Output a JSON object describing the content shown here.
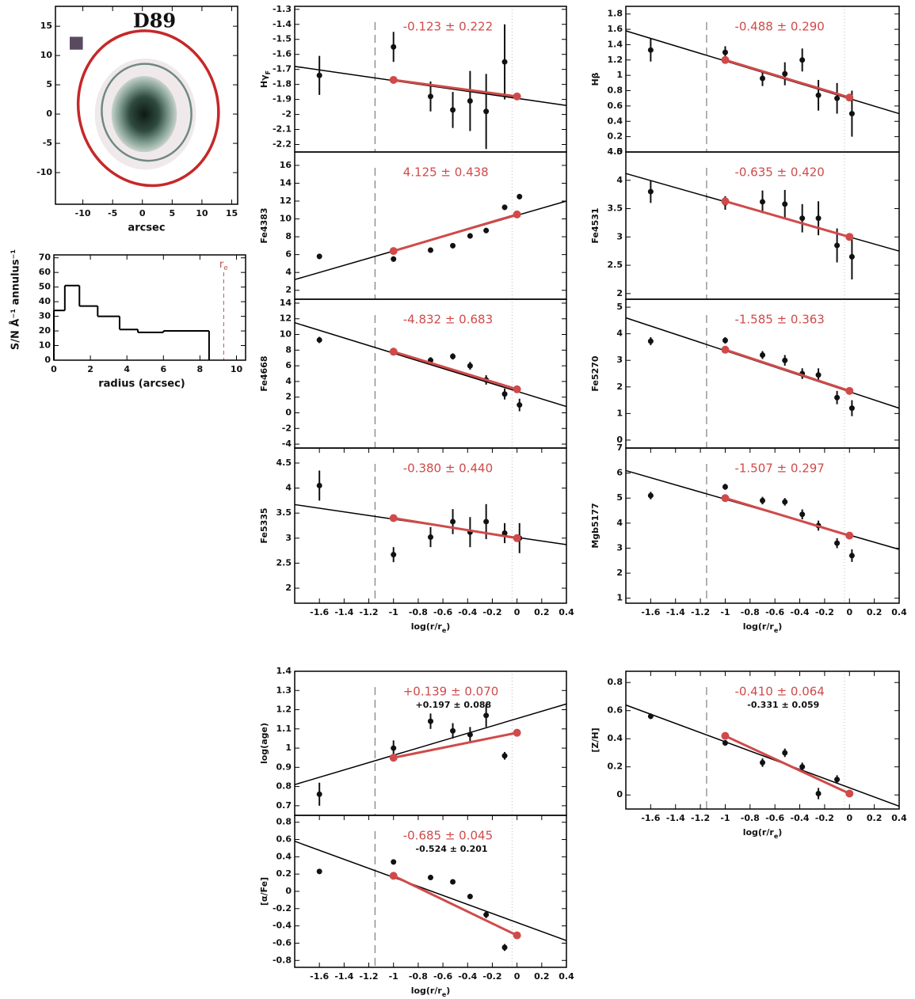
{
  "chart_data": [
    {
      "type": "image",
      "title": "D89",
      "xlabel": "arcsec",
      "xlim": [
        -14.6,
        16
      ],
      "ylim": [
        -15.4,
        18.4
      ],
      "xticks": [
        -10,
        -5,
        0,
        5,
        10,
        15
      ],
      "yticks": [
        -10,
        -5,
        0,
        5,
        10,
        15
      ]
    },
    {
      "type": "histogram",
      "xlabel": "radius (arcsec)",
      "ylabel": "S/N Å⁻¹ annulus⁻¹",
      "bins": [
        0,
        0.6,
        1.4,
        2.4,
        3.6,
        4.6,
        6,
        8.5
      ],
      "values": [
        34,
        51,
        37,
        30,
        21,
        19,
        20
      ],
      "xlim": [
        0,
        10.5
      ],
      "ylim": [
        0,
        72
      ],
      "xticks": [
        0,
        2,
        4,
        6,
        8,
        10
      ],
      "yticks": [
        0,
        10,
        20,
        30,
        40,
        50,
        60,
        70
      ],
      "annotation": "r",
      "annotation_sub": "e",
      "marker_x": 9.3,
      "marker_color": "#c0504d"
    },
    {
      "type": "gradient",
      "ylabel": "Hγ",
      "ylabel_sub": "F",
      "xlim": [
        -1.8,
        0.4
      ],
      "ylim": [
        -2.25,
        -1.28
      ],
      "yticks": [
        -2.2,
        -2.1,
        -2,
        -1.9,
        -1.8,
        -1.7,
        -1.6,
        -1.5,
        -1.4,
        -1.3
      ],
      "vline": -1.15,
      "color": "#d04a4a",
      "x": [
        -1.6,
        -1.0,
        -0.7,
        -0.52,
        -0.38,
        -0.25,
        -0.1
      ],
      "values": [
        -1.74,
        -1.55,
        -1.88,
        -1.97,
        -1.91,
        -1.98,
        -1.65
      ],
      "errors": [
        0.13,
        0.1,
        0.1,
        0.12,
        0.2,
        0.25,
        0.25
      ],
      "fit_x": [
        -1.8,
        0.4
      ],
      "fit": [
        -1.68,
        -1.94
      ],
      "red_x": [
        -1,
        0
      ],
      "red": [
        -1.77,
        -1.88
      ],
      "slope_label": "-0.123 ± 0.222"
    },
    {
      "type": "gradient",
      "ylabel": "Hβ",
      "xlim": [
        -1.8,
        0.4
      ],
      "ylim": [
        0,
        1.9
      ],
      "yticks": [
        0,
        0.2,
        0.4,
        0.6,
        0.8,
        1,
        1.2,
        1.4,
        1.6,
        1.8
      ],
      "vline": -1.15,
      "color": "#d04a4a",
      "x": [
        -1.6,
        -1.0,
        -0.7,
        -0.52,
        -0.38,
        -0.25,
        -0.1,
        0.02
      ],
      "values": [
        1.33,
        1.3,
        0.96,
        1.02,
        1.2,
        0.74,
        0.7,
        0.5
      ],
      "errors": [
        0.15,
        0.08,
        0.1,
        0.15,
        0.15,
        0.2,
        0.2,
        0.3
      ],
      "fit_x": [
        -1.8,
        0.4
      ],
      "fit": [
        1.58,
        0.5
      ],
      "red_x": [
        -1,
        0
      ],
      "red": [
        1.2,
        0.71
      ],
      "slope_label": "-0.488 ± 0.290"
    },
    {
      "type": "gradient",
      "ylabel": "Fe4383",
      "xlim": [
        -1.8,
        0.4
      ],
      "ylim": [
        1,
        17.5
      ],
      "yticks": [
        2,
        4,
        6,
        8,
        10,
        12,
        14,
        16
      ],
      "vline": -1.15,
      "color": "#d04a4a",
      "x": [
        -1.6,
        -1.0,
        -0.7,
        -0.52,
        -0.38,
        -0.25,
        -0.1,
        0.02
      ],
      "values": [
        5.8,
        5.5,
        6.5,
        7.0,
        8.1,
        8.7,
        11.3,
        12.5
      ],
      "errors": [
        0.3,
        0.3,
        0.3,
        0.3,
        0.3,
        0.3,
        0.3,
        0.3
      ],
      "fit_x": [
        -1.8,
        0.4
      ],
      "fit": [
        3.2,
        12
      ],
      "red_x": [
        -1,
        0
      ],
      "red": [
        6.4,
        10.5
      ],
      "slope_label": "4.125 ± 0.438"
    },
    {
      "type": "gradient",
      "ylabel": "Fe4531",
      "xlim": [
        -1.8,
        0.4
      ],
      "ylim": [
        1.9,
        4.5
      ],
      "yticks": [
        2,
        2.5,
        3,
        3.5,
        4,
        4.5
      ],
      "vline": -1.15,
      "color": "#d04a4a",
      "x": [
        -1.6,
        -1.0,
        -0.7,
        -0.52,
        -0.38,
        -0.25,
        -0.1,
        0.02
      ],
      "values": [
        3.8,
        3.6,
        3.62,
        3.58,
        3.33,
        3.33,
        2.85,
        2.65
      ],
      "errors": [
        0.2,
        0.12,
        0.2,
        0.25,
        0.25,
        0.3,
        0.3,
        0.4
      ],
      "fit_x": [
        -1.8,
        0.4
      ],
      "fit": [
        4.12,
        2.75
      ],
      "red_x": [
        -1,
        0
      ],
      "red": [
        3.63,
        3.0
      ],
      "slope_label": "-0.635 ± 0.420"
    },
    {
      "type": "gradient",
      "ylabel": "Fe4668",
      "xlim": [
        -1.8,
        0.4
      ],
      "ylim": [
        -4.5,
        14.5
      ],
      "yticks": [
        -4,
        -2,
        0,
        2,
        4,
        6,
        8,
        10,
        12,
        14
      ],
      "vline": -1.15,
      "color": "#d04a4a",
      "x": [
        -1.6,
        -1.0,
        -0.7,
        -0.52,
        -0.38,
        -0.25,
        -0.1,
        0.02
      ],
      "values": [
        9.3,
        7.9,
        6.7,
        7.2,
        6.0,
        4.2,
        2.4,
        1.0
      ],
      "errors": [
        0.4,
        0.4,
        0.4,
        0.4,
        0.5,
        0.6,
        0.7,
        0.8
      ],
      "fit_x": [
        -1.8,
        0.4
      ],
      "fit": [
        11.5,
        0.8
      ],
      "red_x": [
        -1,
        0
      ],
      "red": [
        7.8,
        3.0
      ],
      "slope_label": "-4.832 ± 0.683"
    },
    {
      "type": "gradient",
      "ylabel": "Fe5270",
      "xlim": [
        -1.8,
        0.4
      ],
      "ylim": [
        -0.3,
        5.3
      ],
      "yticks": [
        0,
        1,
        2,
        3,
        4,
        5
      ],
      "vline": -1.15,
      "color": "#d04a4a",
      "x": [
        -1.6,
        -1.0,
        -0.7,
        -0.52,
        -0.38,
        -0.25,
        -0.1,
        0.02
      ],
      "values": [
        3.72,
        3.75,
        3.2,
        3.0,
        2.5,
        2.45,
        1.6,
        1.2
      ],
      "errors": [
        0.15,
        0.12,
        0.15,
        0.2,
        0.2,
        0.25,
        0.25,
        0.3
      ],
      "fit_x": [
        -1.8,
        0.4
      ],
      "fit": [
        4.6,
        1.2
      ],
      "red_x": [
        -1,
        0
      ],
      "red": [
        3.4,
        1.85
      ],
      "slope_label": "-1.585 ± 0.363"
    },
    {
      "type": "gradient",
      "ylabel": "Fe5335",
      "xlabel": "log(r/r",
      "xlabel_sub": "e",
      "xlabel_end": ")",
      "xlim": [
        -1.8,
        0.4
      ],
      "ylim": [
        1.7,
        4.8
      ],
      "xticks": [
        -1.6,
        -1.4,
        -1.2,
        -1,
        -0.8,
        -0.6,
        -0.4,
        -0.2,
        0,
        0.2,
        0.4
      ],
      "yticks": [
        2,
        2.5,
        3,
        3.5,
        4,
        4.5
      ],
      "vline": -1.15,
      "color": "#d04a4a",
      "x": [
        -1.6,
        -1.0,
        -0.7,
        -0.52,
        -0.38,
        -0.25,
        -0.1,
        0.02
      ],
      "values": [
        4.05,
        2.67,
        3.02,
        3.33,
        3.12,
        3.33,
        3.1,
        3.0
      ],
      "errors": [
        0.3,
        0.15,
        0.2,
        0.25,
        0.3,
        0.35,
        0.2,
        0.3
      ],
      "fit_x": [
        -1.8,
        0.4
      ],
      "fit": [
        3.67,
        2.87
      ],
      "red_x": [
        -1,
        0
      ],
      "red": [
        3.4,
        3.0
      ],
      "slope_label": "-0.380 ± 0.440"
    },
    {
      "type": "gradient",
      "ylabel": "Mgb5177",
      "xlabel": "log(r/r",
      "xlabel_sub": "e",
      "xlabel_end": ")",
      "xlim": [
        -1.8,
        0.4
      ],
      "ylim": [
        0.8,
        7
      ],
      "xticks": [
        -1.6,
        -1.4,
        -1.2,
        -1,
        -0.8,
        -0.6,
        -0.4,
        -0.2,
        0,
        0.2,
        0.4
      ],
      "yticks": [
        1,
        2,
        3,
        4,
        5,
        6,
        7
      ],
      "vline": -1.15,
      "color": "#d04a4a",
      "x": [
        -1.6,
        -1.0,
        -0.7,
        -0.52,
        -0.38,
        -0.25,
        -0.1,
        0.02
      ],
      "values": [
        5.1,
        5.45,
        4.9,
        4.85,
        4.35,
        3.9,
        3.2,
        2.7
      ],
      "errors": [
        0.15,
        0.12,
        0.15,
        0.15,
        0.2,
        0.2,
        0.2,
        0.25
      ],
      "fit_x": [
        -1.8,
        0.4
      ],
      "fit": [
        6.1,
        2.95
      ],
      "red_x": [
        -1,
        0
      ],
      "red": [
        5.0,
        3.5
      ],
      "slope_label": "-1.507 ± 0.297"
    },
    {
      "type": "gradient",
      "ylabel": "log(age)",
      "xlim": [
        -1.8,
        0.4
      ],
      "ylim": [
        0.65,
        1.4
      ],
      "yticks": [
        0.7,
        0.8,
        0.9,
        1,
        1.1,
        1.2,
        1.3,
        1.4
      ],
      "vline": -1.15,
      "color": "#d04a4a",
      "x": [
        -1.6,
        -1.0,
        -0.7,
        -0.52,
        -0.38,
        -0.25,
        -0.1
      ],
      "values": [
        0.76,
        1.0,
        1.14,
        1.09,
        1.07,
        1.17,
        0.96
      ],
      "errors": [
        0.06,
        0.04,
        0.04,
        0.04,
        0.04,
        0.06,
        0.02
      ],
      "fit_x": [
        -1.8,
        0.4
      ],
      "fit": [
        0.81,
        1.23
      ],
      "red_x": [
        -1,
        0
      ],
      "red": [
        0.95,
        1.08
      ],
      "slope_label": "+0.139 ± 0.070",
      "slope_label_2": "+0.197 ± 0.088"
    },
    {
      "type": "gradient",
      "ylabel": "[α/Fe]",
      "xlabel": "log(r/r",
      "xlabel_sub": "e",
      "xlabel_end": ")",
      "xlim": [
        -1.8,
        0.4
      ],
      "ylim": [
        -0.88,
        0.88
      ],
      "xticks": [
        -1.6,
        -1.4,
        -1.2,
        -1,
        -0.8,
        -0.6,
        -0.4,
        -0.2,
        0,
        0.2,
        0.4
      ],
      "yticks": [
        -0.8,
        -0.6,
        -0.4,
        -0.2,
        0,
        0.2,
        0.4,
        0.6,
        0.8
      ],
      "vline": -1.15,
      "color": "#d04a4a",
      "x": [
        -1.6,
        -1.0,
        -0.7,
        -0.52,
        -0.38,
        -0.25,
        -0.1
      ],
      "values": [
        0.23,
        0.34,
        0.16,
        0.11,
        -0.06,
        -0.27,
        -0.65
      ],
      "errors": [
        0.02,
        0.02,
        0.02,
        0.02,
        0.03,
        0.04,
        0.04
      ],
      "fit_x": [
        -1.8,
        0.4
      ],
      "fit": [
        0.58,
        -0.57
      ],
      "red_x": [
        -1,
        0
      ],
      "red": [
        0.18,
        -0.51
      ],
      "slope_label": "-0.685 ± 0.045",
      "slope_label_2": "-0.524 ± 0.201"
    },
    {
      "type": "gradient",
      "ylabel": "[Z/H]",
      "xlabel": "log(r/r",
      "xlabel_sub": "e",
      "xlabel_end": ")",
      "xlim": [
        -1.8,
        0.4
      ],
      "ylim": [
        -0.1,
        0.88
      ],
      "xticks": [
        -1.6,
        -1.4,
        -1.2,
        -1,
        -0.8,
        -0.6,
        -0.4,
        -0.2,
        0,
        0.2,
        0.4
      ],
      "yticks": [
        0,
        0.2,
        0.4,
        0.6,
        0.8
      ],
      "vline": -1.15,
      "color": "#d04a4a",
      "x": [
        -1.6,
        -1.0,
        -0.7,
        -0.52,
        -0.38,
        -0.25,
        -0.1
      ],
      "values": [
        0.56,
        0.37,
        0.23,
        0.3,
        0.2,
        0.01,
        0.11
      ],
      "errors": [
        0.02,
        0.02,
        0.03,
        0.03,
        0.03,
        0.04,
        0.03
      ],
      "fit_x": [
        -1.8,
        0.4
      ],
      "fit": [
        0.64,
        -0.08
      ],
      "red_x": [
        -1,
        0
      ],
      "red": [
        0.42,
        0.01
      ],
      "slope_label": "-0.410 ± 0.064",
      "slope_label_2": "-0.331 ± 0.059"
    }
  ]
}
